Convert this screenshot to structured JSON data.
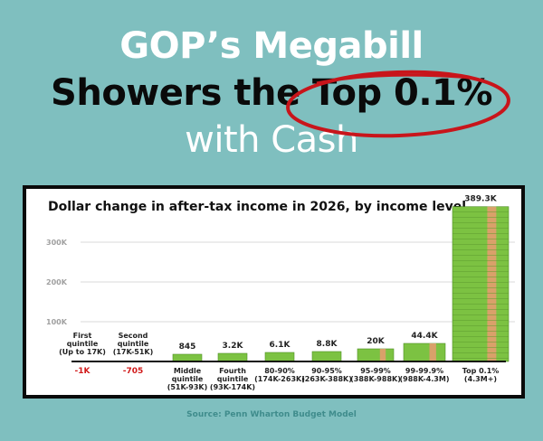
{
  "headline": {
    "line1": "GOP’s Megabill",
    "line2_prefix": "Showers the ",
    "line2_highlight": "Top 0.1%",
    "line3": "with Cash"
  },
  "colors": {
    "background": "#7fbfbf",
    "circle": "#c8151b",
    "cash_green": "#7cc242",
    "band": "#d9a16a",
    "negative": "#d11a1a"
  },
  "source": "Source: Penn Wharton Budget Model",
  "chart_data": {
    "type": "bar",
    "title": "Dollar change in after-tax income in 2026, by income level",
    "xlabel": "",
    "ylabel": "",
    "ylim": [
      0,
      400000
    ],
    "yticks": [
      100000,
      200000,
      300000
    ],
    "ytick_labels": [
      "100K",
      "200K",
      "300K"
    ],
    "grid": true,
    "categories": [
      {
        "name": "First quintile",
        "range": "(Up to 17K)",
        "label_pos": "above"
      },
      {
        "name": "Second quintile",
        "range": "(17K-51K)",
        "label_pos": "above"
      },
      {
        "name": "Middle quintile",
        "range": "(51K-93K)",
        "label_pos": "below"
      },
      {
        "name": "Fourth quintile",
        "range": "(93K-174K)",
        "label_pos": "below"
      },
      {
        "name": "80-90%",
        "range": "(174K-263K)",
        "label_pos": "below"
      },
      {
        "name": "90-95%",
        "range": "(263K-388K)",
        "label_pos": "below"
      },
      {
        "name": "95-99%",
        "range": "(388K-988K)",
        "label_pos": "below"
      },
      {
        "name": "99-99.9%",
        "range": "(988K-4.3M)",
        "label_pos": "below"
      },
      {
        "name": "Top 0.1%",
        "range": "(4.3M+)",
        "label_pos": "below"
      }
    ],
    "values": [
      -1000,
      -705,
      845,
      3200,
      6100,
      8800,
      20000,
      44400,
      389300
    ],
    "value_labels": [
      "-1K",
      "-705",
      "845",
      "3.2K",
      "6.1K",
      "8.8K",
      "20K",
      "44.4K",
      "389.3K"
    ]
  }
}
